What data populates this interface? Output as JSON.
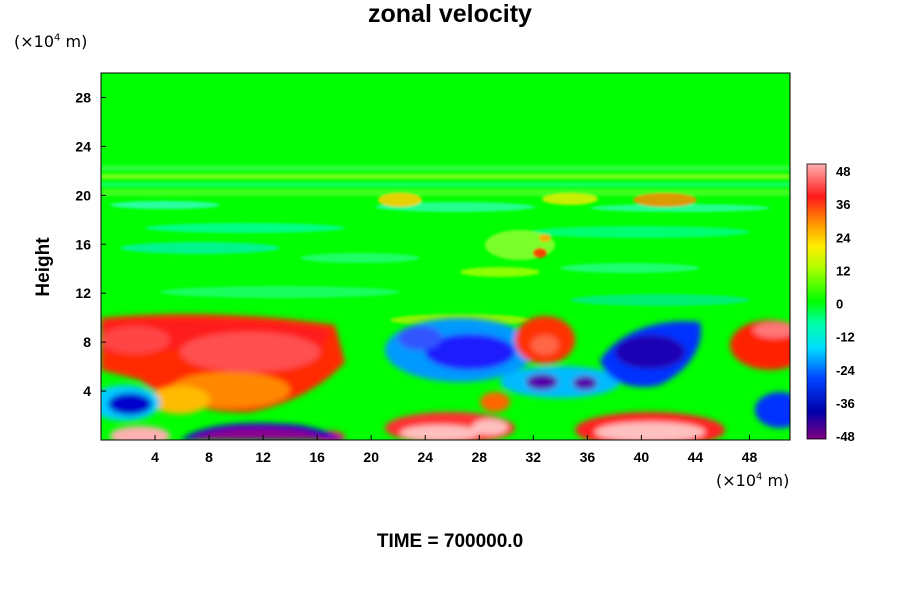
{
  "title": "zonal velocity",
  "x_unit": {
    "prefix": "(×10",
    "exp": "4",
    "suffix": " m)"
  },
  "y_unit": {
    "prefix": "(×10",
    "exp": "4",
    "suffix": " m)"
  },
  "footer": {
    "label": "TIME",
    "separator": " = ",
    "value": "700000.0"
  },
  "chart_data": {
    "type": "heatmap",
    "title": "zonal velocity",
    "ylabel": "Height",
    "xlabel": "",
    "x_ticks": [
      "4",
      "8",
      "12",
      "16",
      "20",
      "24",
      "28",
      "32",
      "36",
      "40",
      "44",
      "48"
    ],
    "y_ticks": [
      "4",
      "8",
      "12",
      "16",
      "20",
      "24",
      "28"
    ],
    "xlim": [
      0,
      51
    ],
    "ylim": [
      0,
      30
    ],
    "colorbar": {
      "min": -48,
      "max": 48,
      "ticks": [
        "48",
        "36",
        "24",
        "12",
        "0",
        "-12",
        "-24",
        "-36",
        "-48"
      ]
    },
    "colors": {
      "background_value_color": "#00ff00",
      "positive_peak": "#ff0000",
      "negative_peak": "#0000cc",
      "extreme_positive": "#ffc0c0",
      "extreme_negative": "#800080"
    }
  }
}
